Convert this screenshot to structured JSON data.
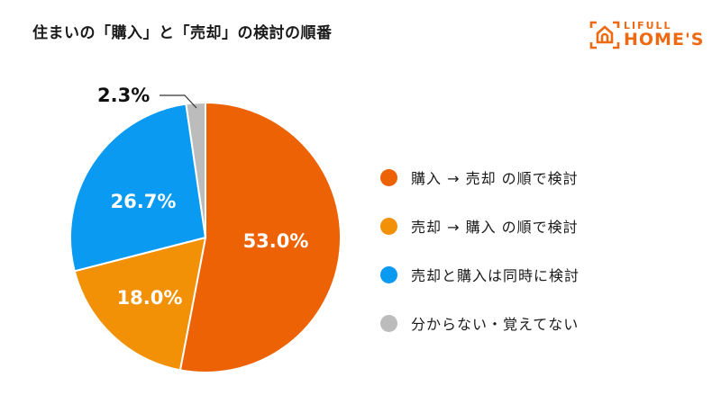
{
  "header": {
    "title": "住まいの「購入」と「売却」の検討の順番"
  },
  "logo": {
    "line1": "LIFULL",
    "line2": "HOME'S",
    "color": "#ee6a12"
  },
  "chart_data": {
    "type": "pie",
    "title": "住まいの「購入」と「売却」の検討の順番",
    "categories": [
      "購入 → 売却 の順で検討",
      "売却 → 購入 の順で検討",
      "売却と購入は同時に検討",
      "分からない・覚えてない"
    ],
    "values": [
      53.0,
      18.0,
      26.7,
      2.3
    ],
    "labels": [
      "53.0%",
      "18.0%",
      "26.7%",
      "2.3%"
    ],
    "colors": [
      "#ec6204",
      "#f29105",
      "#0a9af2",
      "#bcbcbc"
    ],
    "start_angle_deg": 0,
    "direction": "clockwise",
    "legend_position": "right"
  },
  "legend": {
    "items": [
      {
        "label": "購入 → 売却 の順で検討",
        "color": "#ec6204"
      },
      {
        "label": "売却 → 購入 の順で検討",
        "color": "#f29105"
      },
      {
        "label": "売却と購入は同時に検討",
        "color": "#0a9af2"
      },
      {
        "label": "分からない・覚えてない",
        "color": "#bcbcbc"
      }
    ]
  },
  "slice_labels": [
    "53.0%",
    "18.0%",
    "26.7%",
    "2.3%"
  ]
}
